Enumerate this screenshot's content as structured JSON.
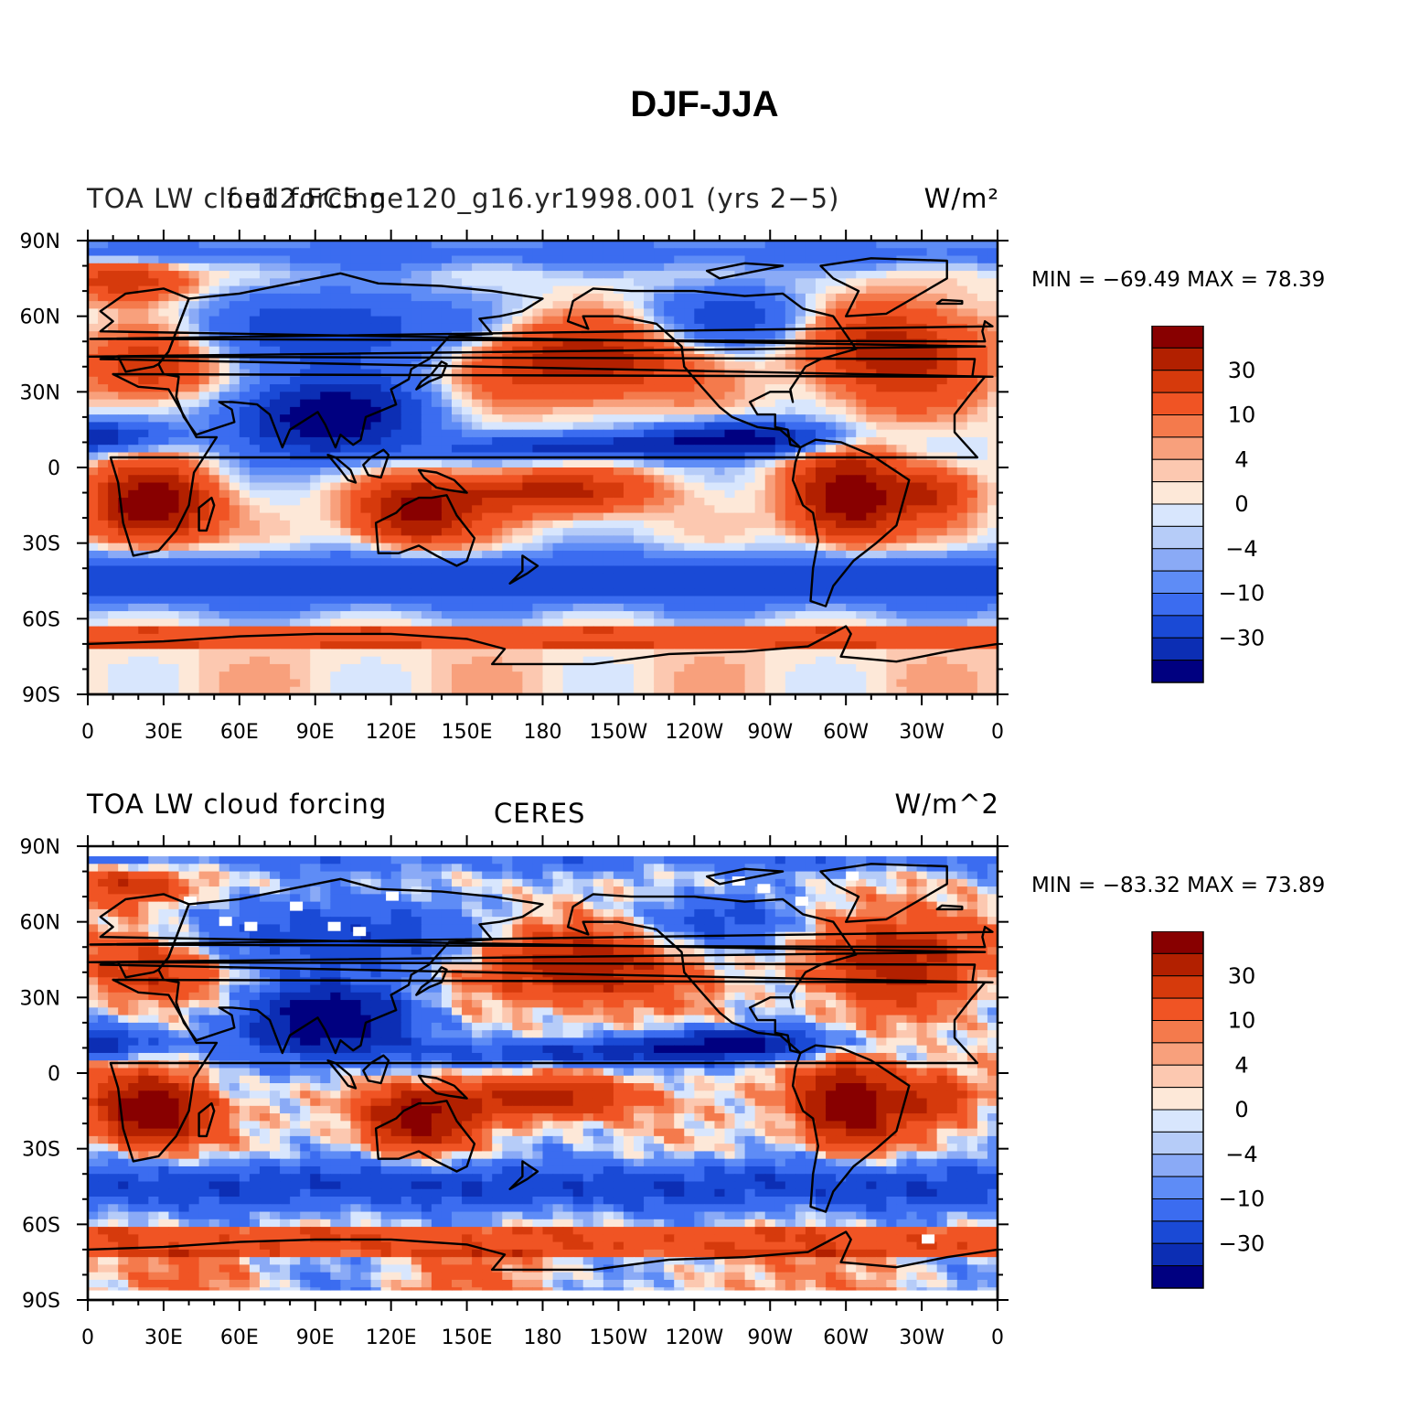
{
  "title": "DJF-JJA",
  "colors": {
    "levels": [
      "#000080",
      "#0c2eb4",
      "#1a4ad6",
      "#3b6cf0",
      "#5e8cf6",
      "#8aaaf6",
      "#b6ccf8",
      "#d8e6fd",
      "#fde8d8",
      "#fcc8b0",
      "#f8a07c",
      "#f47a4c",
      "#f05424",
      "#d63a0c",
      "#b22000",
      "#880000"
    ],
    "land_outline": "#000000"
  },
  "colorbar": {
    "labels": [
      "30",
      "10",
      "4",
      "0",
      "−4",
      "−10",
      "−30"
    ]
  },
  "axes": {
    "lat_labels": [
      "90N",
      "60N",
      "30N",
      "0",
      "30S",
      "60S",
      "90S"
    ],
    "lon_labels": [
      "0",
      "30E",
      "60E",
      "90E",
      "120E",
      "150E",
      "180",
      "150W",
      "120W",
      "90W",
      "60W",
      "30W",
      "0"
    ]
  },
  "panels": [
    {
      "title_left": "TOA LW cloud forcing",
      "title_center": "f.e12.FC5.ne120_g16.yr1998.001 (yrs 2−5)",
      "title_right": "W/m²",
      "min_label": "MIN = −69.49  MAX =   78.39",
      "min": -69.49,
      "max": 78.39
    },
    {
      "title_left": "TOA LW cloud forcing",
      "title_center": "CERES",
      "title_right": "W/m^2",
      "min_label": "MIN = −83.32  MAX =   73.89",
      "min": -83.32,
      "max": 73.89
    }
  ]
}
